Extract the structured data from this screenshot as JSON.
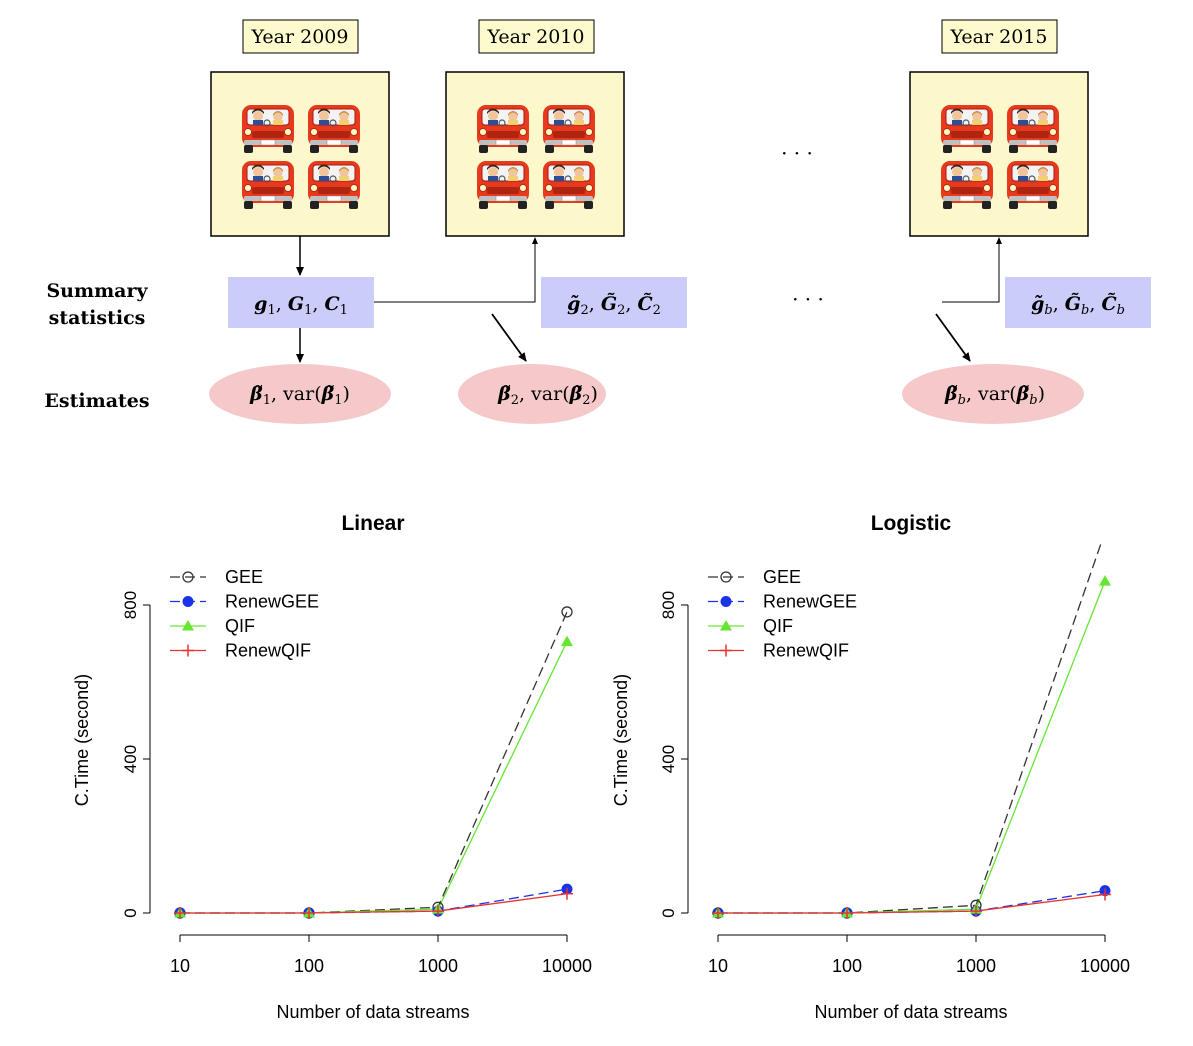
{
  "diagram": {
    "years": [
      {
        "label": "Year 2009"
      },
      {
        "label": "Year 2010"
      },
      {
        "label": "Year 2015"
      }
    ],
    "ellipsis": "· · ·",
    "row_labels": {
      "summary_line1": "Summary",
      "summary_line2": "statistics",
      "estimates": "Estimates"
    },
    "summary_boxes": [
      {
        "a": "g",
        "b": "G",
        "c": "C",
        "sub": "1",
        "tilde": false
      },
      {
        "a": "g",
        "b": "G",
        "c": "C",
        "sub": "2",
        "tilde": true
      },
      {
        "a": "g",
        "b": "G",
        "c": "C",
        "sub": "b",
        "tilde": true
      }
    ],
    "estimate_ellipses": [
      {
        "beta": "β",
        "var": "var",
        "sub": "1"
      },
      {
        "beta": "β",
        "var": "var",
        "sub": "2"
      },
      {
        "beta": "β",
        "var": "var",
        "sub": "b"
      }
    ],
    "colors": {
      "year_label_bg": "#fdfacd",
      "data_box_bg": "#fdf8cb",
      "summary_bg": "#ccccfa",
      "estimate_bg": "#f5c9c9",
      "car_red": "#e8391f"
    },
    "car_icon": "car-with-passengers-icon"
  },
  "chart_data": [
    {
      "type": "line",
      "title": "Linear",
      "xlabel": "Number of data streams",
      "ylabel": "C.Time (second)",
      "x": [
        "10",
        "100",
        "1000",
        "10000"
      ],
      "ylim": [
        0,
        800
      ],
      "yticks": [
        "0",
        "400",
        "800"
      ],
      "legend_position": "top-left",
      "series": [
        {
          "name": "GEE",
          "values": [
            0,
            0,
            15,
            782
          ],
          "color": "#333333",
          "marker": "circle-open",
          "dash": "dashed"
        },
        {
          "name": "RenewGEE",
          "values": [
            0,
            0,
            5,
            62
          ],
          "color": "#1a33e6",
          "marker": "circle-filled",
          "dash": "dashed"
        },
        {
          "name": "QIF",
          "values": [
            0,
            0,
            10,
            705
          ],
          "color": "#66e633",
          "marker": "triangle",
          "dash": "solid"
        },
        {
          "name": "RenewQIF",
          "values": [
            0,
            0,
            5,
            50
          ],
          "color": "#e63333",
          "marker": "plus",
          "dash": "solid"
        }
      ]
    },
    {
      "type": "line",
      "title": "Logistic",
      "xlabel": "Number of data streams",
      "ylabel": "C.Time (second)",
      "x": [
        "10",
        "100",
        "1000",
        "10000"
      ],
      "ylim": [
        0,
        800
      ],
      "yticks": [
        "0",
        "400",
        "800"
      ],
      "legend_position": "top-left",
      "series": [
        {
          "name": "GEE",
          "values": [
            0,
            0,
            20,
            990
          ],
          "color": "#333333",
          "marker": "circle-open",
          "dash": "dashed"
        },
        {
          "name": "RenewGEE",
          "values": [
            0,
            0,
            5,
            58
          ],
          "color": "#1a33e6",
          "marker": "circle-filled",
          "dash": "dashed"
        },
        {
          "name": "QIF",
          "values": [
            0,
            0,
            10,
            862
          ],
          "color": "#66e633",
          "marker": "triangle",
          "dash": "solid"
        },
        {
          "name": "RenewQIF",
          "values": [
            0,
            0,
            5,
            48
          ],
          "color": "#e63333",
          "marker": "plus",
          "dash": "solid"
        }
      ]
    }
  ]
}
